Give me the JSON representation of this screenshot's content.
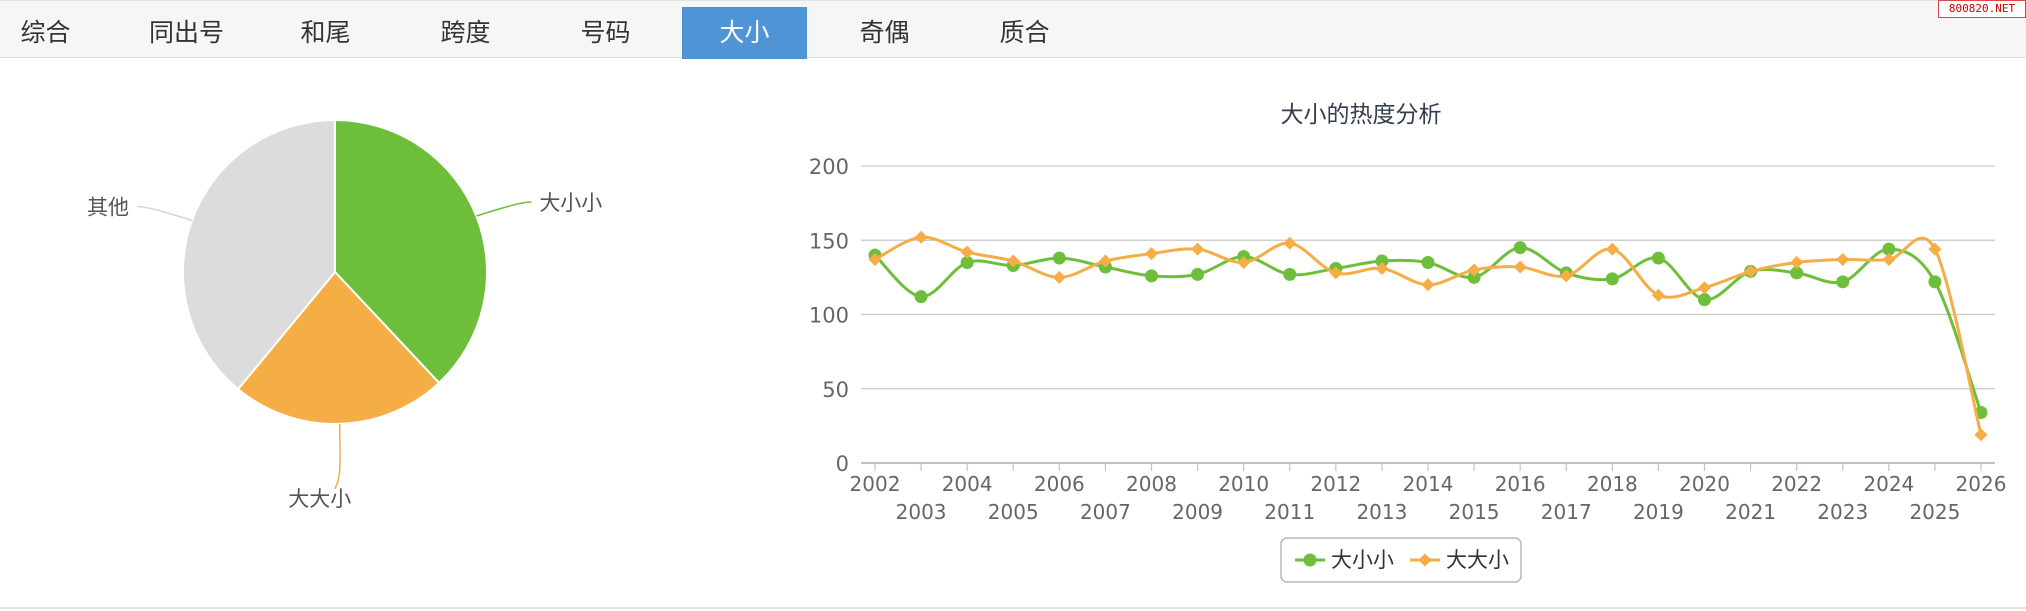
{
  "tabs": [
    {
      "label": "综合",
      "active": false
    },
    {
      "label": "同出号",
      "active": false
    },
    {
      "label": "和尾",
      "active": false
    },
    {
      "label": "跨度",
      "active": false
    },
    {
      "label": "号码",
      "active": false
    },
    {
      "label": "大小",
      "active": true
    },
    {
      "label": "奇偶",
      "active": false
    },
    {
      "label": "质合",
      "active": false
    }
  ],
  "watermark": "800820.NET",
  "colors": {
    "green": "#6dbf3b",
    "orange": "#f5ad45",
    "gray": "#dcdcdc",
    "tab_active": "#4f94d4"
  },
  "chart_data": [
    {
      "type": "pie",
      "slices": [
        {
          "label": "大小小",
          "value": 38,
          "color": "#6dbf3b"
        },
        {
          "label": "大大小",
          "value": 23,
          "color": "#f5ad45"
        },
        {
          "label": "其他",
          "value": 39,
          "color": "#dcdcdc"
        }
      ]
    },
    {
      "type": "line",
      "title": "大小的热度分析",
      "x": [
        "2002",
        "2003",
        "2004",
        "2005",
        "2006",
        "2007",
        "2008",
        "2009",
        "2010",
        "2011",
        "2012",
        "2013",
        "2014",
        "2015",
        "2016",
        "2017",
        "2018",
        "2019",
        "2020",
        "2021",
        "2022",
        "2023",
        "2024",
        "2025",
        "2026"
      ],
      "ylim": [
        0,
        200
      ],
      "yticks": [
        0,
        50,
        100,
        150,
        200
      ],
      "grid": true,
      "legend": "bottom-center",
      "series": [
        {
          "name": "大小小",
          "color": "#6dbf3b",
          "marker": "circle",
          "values": [
            140,
            112,
            135,
            133,
            138,
            132,
            126,
            127,
            139,
            127,
            131,
            136,
            135,
            125,
            145,
            128,
            124,
            138,
            110,
            129,
            128,
            122,
            144,
            122,
            34
          ]
        },
        {
          "name": "大大小",
          "color": "#f5ad45",
          "marker": "diamond",
          "values": [
            137,
            152,
            142,
            136,
            125,
            136,
            141,
            144,
            135,
            148,
            128,
            131,
            120,
            130,
            132,
            126,
            144,
            113,
            118,
            129,
            135,
            137,
            137,
            144,
            19
          ]
        }
      ]
    }
  ]
}
